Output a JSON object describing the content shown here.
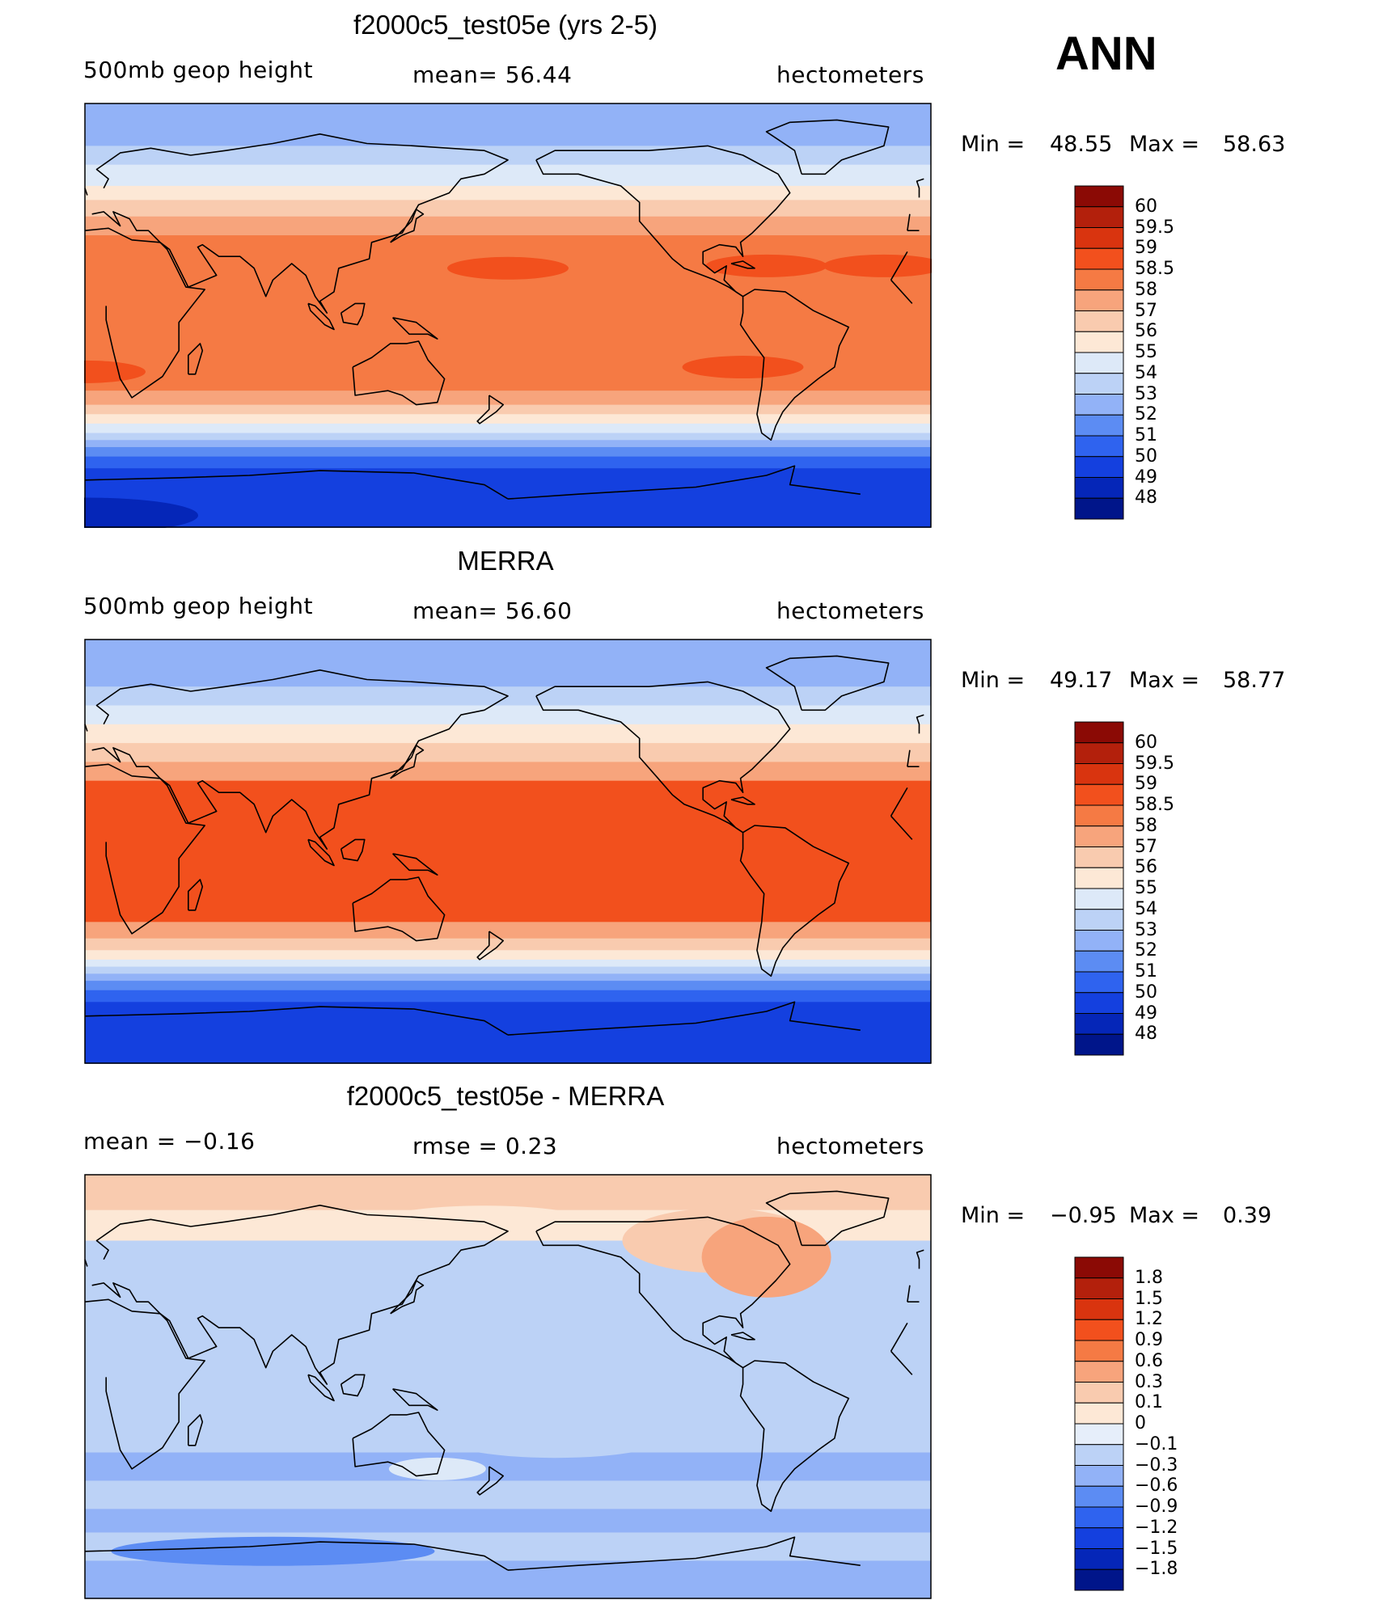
{
  "season": "ANN",
  "panels": [
    {
      "title": "f2000c5_test05e (yrs 2-5)",
      "left_label": "500mb geop height",
      "center_label": "mean=   56.44",
      "right_label": "hectometers",
      "min_label": "Min =",
      "min_value": "48.55",
      "max_label": "Max =",
      "max_value": "58.63",
      "colorbar_levels": [
        "60",
        "59.5",
        "59",
        "58.5",
        "58",
        "57",
        "56",
        "55",
        "54",
        "53",
        "52",
        "51",
        "50",
        "49",
        "48"
      ],
      "colorbar_colors": [
        "#8b0a05",
        "#b3200c",
        "#d9340f",
        "#f2501d",
        "#f57a44",
        "#f7a47c",
        "#f9cbaf",
        "#fde8d6",
        "#dde9f8",
        "#bcd2f6",
        "#92b2f7",
        "#5c8cf3",
        "#2f63ef",
        "#1440df",
        "#0526b8",
        "#00158a"
      ],
      "map_bands": [
        {
          "lat": 90,
          "color": "#92b2f7"
        },
        {
          "lat": 72,
          "color": "#bcd2f6"
        },
        {
          "lat": 64,
          "color": "#dde9f8"
        },
        {
          "lat": 55,
          "color": "#fde8d6"
        },
        {
          "lat": 49,
          "color": "#f9cbaf"
        },
        {
          "lat": 42,
          "color": "#f7a47c"
        },
        {
          "lat": 34,
          "color": "#f57a44"
        },
        {
          "lat": -32,
          "color": "#f7a47c"
        },
        {
          "lat": -38,
          "color": "#f9cbaf"
        },
        {
          "lat": -42,
          "color": "#fde8d6"
        },
        {
          "lat": -46,
          "color": "#dde9f8"
        },
        {
          "lat": -50,
          "color": "#bcd2f6"
        },
        {
          "lat": -53,
          "color": "#92b2f7"
        },
        {
          "lat": -56,
          "color": "#5c8cf3"
        },
        {
          "lat": -60,
          "color": "#2f63ef"
        },
        {
          "lat": -65,
          "color": "#1440df"
        },
        {
          "lat": -90,
          "color": "#1440df"
        }
      ]
    },
    {
      "title": "MERRA",
      "left_label": "500mb geop height",
      "center_label": "mean=   56.60",
      "right_label": "hectometers",
      "min_label": "Min =",
      "min_value": "49.17",
      "max_label": "Max =",
      "max_value": "58.77",
      "colorbar_levels": [
        "60",
        "59.5",
        "59",
        "58.5",
        "58",
        "57",
        "56",
        "55",
        "54",
        "53",
        "52",
        "51",
        "50",
        "49",
        "48"
      ],
      "colorbar_colors": [
        "#8b0a05",
        "#b3200c",
        "#d9340f",
        "#f2501d",
        "#f57a44",
        "#f7a47c",
        "#f9cbaf",
        "#fde8d6",
        "#dde9f8",
        "#bcd2f6",
        "#92b2f7",
        "#5c8cf3",
        "#2f63ef",
        "#1440df",
        "#0526b8",
        "#00158a"
      ],
      "map_bands": [
        {
          "lat": 90,
          "color": "#92b2f7"
        },
        {
          "lat": 70,
          "color": "#bcd2f6"
        },
        {
          "lat": 62,
          "color": "#dde9f8"
        },
        {
          "lat": 54,
          "color": "#fde8d6"
        },
        {
          "lat": 46,
          "color": "#f9cbaf"
        },
        {
          "lat": 38,
          "color": "#f7a47c"
        },
        {
          "lat": 30,
          "color": "#f2501d"
        },
        {
          "lat": -30,
          "color": "#f7a47c"
        },
        {
          "lat": -37,
          "color": "#f9cbaf"
        },
        {
          "lat": -42,
          "color": "#fde8d6"
        },
        {
          "lat": -46,
          "color": "#dde9f8"
        },
        {
          "lat": -49,
          "color": "#bcd2f6"
        },
        {
          "lat": -52,
          "color": "#92b2f7"
        },
        {
          "lat": -55,
          "color": "#5c8cf3"
        },
        {
          "lat": -59,
          "color": "#2f63ef"
        },
        {
          "lat": -64,
          "color": "#1440df"
        },
        {
          "lat": -90,
          "color": "#1440df"
        }
      ]
    },
    {
      "title": "f2000c5_test05e - MERRA",
      "left_label": "mean =   −0.16",
      "center_label": "rmse =    0.23",
      "right_label": "hectometers",
      "min_label": "Min =",
      "min_value": "−0.95",
      "max_label": "Max =",
      "max_value": "0.39",
      "colorbar_levels": [
        "1.8",
        "1.5",
        "1.2",
        "0.9",
        "0.6",
        "0.3",
        "0.1",
        "0",
        "−0.1",
        "−0.3",
        "−0.6",
        "−0.9",
        "−1.2",
        "−1.5",
        "−1.8"
      ],
      "colorbar_colors": [
        "#8b0a05",
        "#b3200c",
        "#d9340f",
        "#f2501d",
        "#f57a44",
        "#f7a47c",
        "#f9cbaf",
        "#fde8d6",
        "#e6eefa",
        "#bcd2f6",
        "#92b2f7",
        "#5c8cf3",
        "#2f63ef",
        "#1440df",
        "#0526b8",
        "#00158a"
      ],
      "map_bands": [
        {
          "lat": 90,
          "color": "#f9cbaf"
        },
        {
          "lat": 75,
          "color": "#fde8d6"
        },
        {
          "lat": 62,
          "color": "#bcd2f6"
        },
        {
          "lat": 50,
          "color": "#bcd2f6"
        },
        {
          "lat": -28,
          "color": "#92b2f7"
        },
        {
          "lat": -40,
          "color": "#bcd2f6"
        },
        {
          "lat": -52,
          "color": "#92b2f7"
        },
        {
          "lat": -62,
          "color": "#bcd2f6"
        },
        {
          "lat": -74,
          "color": "#92b2f7"
        },
        {
          "lat": -90,
          "color": "#92b2f7"
        }
      ]
    }
  ]
}
